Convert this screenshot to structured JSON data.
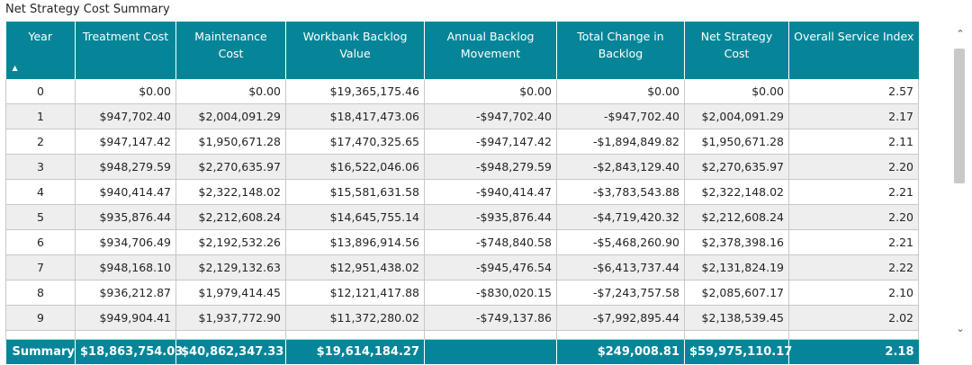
{
  "title": "Net Strategy Cost Summary",
  "columns": [
    "Year",
    "Treatment Cost",
    "Maintenance Cost",
    "Workbank Backlog Value",
    "Annual Backlog Movement",
    "Total Change in Backlog",
    "Net Strategy Cost",
    "Overall Service Index"
  ],
  "sort": {
    "column": "Year",
    "direction": "ascending",
    "indicator": "▲"
  },
  "rows": [
    [
      "0",
      "$0.00",
      "$0.00",
      "$19,365,175.46",
      "$0.00",
      "$0.00",
      "$0.00",
      "2.57"
    ],
    [
      "1",
      "$947,702.40",
      "$2,004,091.29",
      "$18,417,473.06",
      "-$947,702.40",
      "-$947,702.40",
      "$2,004,091.29",
      "2.17"
    ],
    [
      "2",
      "$947,147.42",
      "$1,950,671.28",
      "$17,470,325.65",
      "-$947,147.42",
      "-$1,894,849.82",
      "$1,950,671.28",
      "2.11"
    ],
    [
      "3",
      "$948,279.59",
      "$2,270,635.97",
      "$16,522,046.06",
      "-$948,279.59",
      "-$2,843,129.40",
      "$2,270,635.97",
      "2.20"
    ],
    [
      "4",
      "$940,414.47",
      "$2,322,148.02",
      "$15,581,631.58",
      "-$940,414.47",
      "-$3,783,543.88",
      "$2,322,148.02",
      "2.21"
    ],
    [
      "5",
      "$935,876.44",
      "$2,212,608.24",
      "$14,645,755.14",
      "-$935,876.44",
      "-$4,719,420.32",
      "$2,212,608.24",
      "2.20"
    ],
    [
      "6",
      "$934,706.49",
      "$2,192,532.26",
      "$13,896,914.56",
      "-$748,840.58",
      "-$5,468,260.90",
      "$2,378,398.16",
      "2.21"
    ],
    [
      "7",
      "$948,168.10",
      "$2,129,132.63",
      "$12,951,438.02",
      "-$945,476.54",
      "-$6,413,737.44",
      "$2,131,824.19",
      "2.22"
    ],
    [
      "8",
      "$936,212.87",
      "$1,979,414.45",
      "$12,121,417.88",
      "-$830,020.15",
      "-$7,243,757.58",
      "$2,085,607.17",
      "2.10"
    ],
    [
      "9",
      "$949,904.41",
      "$1,937,772.90",
      "$11,372,280.02",
      "-$749,137.86",
      "-$7,992,895.44",
      "$2,138,539.45",
      "2.02"
    ]
  ],
  "summary": [
    "Summary",
    "$18,863,754.03",
    "$40,862,347.33",
    "$19,614,184.27",
    "",
    "$249,008.81",
    "$59,975,110.17",
    "2.18"
  ],
  "scrollbar": {
    "up_icon": "chevron-up-icon",
    "down_icon": "chevron-down-icon"
  },
  "colors": {
    "header_bg": "#068599",
    "header_text": "#ffffff",
    "row_alt": "#eeeeee",
    "border": "#c8c8c8"
  }
}
